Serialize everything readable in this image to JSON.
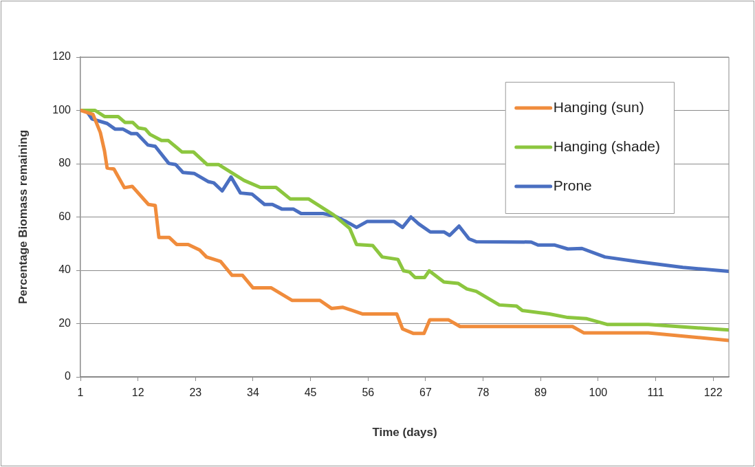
{
  "chart_data": {
    "type": "line",
    "xlabel": "Time (days)",
    "ylabel": "Percentage Biomass remaining",
    "xlim": [
      1,
      125
    ],
    "xticks": [
      1,
      12,
      23,
      34,
      45,
      56,
      67,
      78,
      89,
      100,
      111,
      122
    ],
    "ylim": [
      0,
      120
    ],
    "yticks": [
      0,
      20,
      40,
      60,
      80,
      100,
      120
    ],
    "grid": "y",
    "legend": "top right",
    "marker": "none",
    "line_style": "solid",
    "series": [
      {
        "name": "Hanging (sun)",
        "color": "#f08c3c",
        "x": [
          1,
          3.4,
          4.8,
          5.6,
          6.1,
          7.4,
          9.4,
          10.9,
          14,
          15.3,
          16,
          18,
          19.4,
          21.6,
          23.8,
          25.1,
          27.8,
          30,
          32,
          34,
          37.5,
          41.5,
          46.8,
          49,
          51.2,
          55,
          61.5,
          62.6,
          64.7,
          66.7,
          67.8,
          71.4,
          73.6,
          95.1,
          97.3,
          109.6,
          125
        ],
        "values": [
          100,
          98.5,
          91.7,
          84.8,
          78.4,
          78,
          71,
          71.5,
          64.7,
          64.3,
          52.3,
          52.3,
          49.7,
          49.7,
          47.6,
          45,
          43.3,
          38.1,
          38.1,
          33.4,
          33.4,
          28.7,
          28.7,
          25.7,
          26.1,
          23.6,
          23.6,
          18,
          16.3,
          16.3,
          21.4,
          21.4,
          18.9,
          18.9,
          16.5,
          16.5,
          13.7
        ]
      },
      {
        "name": "Hanging (shade)",
        "color": "#8cc63f",
        "x": [
          1,
          3.8,
          5.6,
          8.2,
          9.5,
          11,
          12.1,
          13.4,
          14.3,
          16.5,
          17.8,
          20.4,
          22.6,
          25.2,
          27.4,
          32.3,
          35.4,
          38.4,
          41.1,
          44.6,
          49.4,
          52.5,
          53.8,
          56.9,
          58.7,
          61.7,
          62.8,
          63.9,
          65,
          66.8,
          67.7,
          70.5,
          73.2,
          74.9,
          76.7,
          81.1,
          84.4,
          85.5,
          90.7,
          94.2,
          97.7,
          101.7,
          109.6,
          125
        ],
        "values": [
          100,
          100,
          97.7,
          97.7,
          95.5,
          95.5,
          93.4,
          93,
          91,
          88.7,
          88.7,
          84.4,
          84.4,
          79.7,
          79.7,
          73.7,
          71.1,
          71.1,
          66.8,
          66.8,
          60.8,
          55.7,
          49.7,
          49.3,
          45,
          44.1,
          39.8,
          39.4,
          37.3,
          37.3,
          39.8,
          35.6,
          35.1,
          33,
          32.1,
          27,
          26.6,
          24.9,
          23.6,
          22.3,
          21.9,
          19.7,
          19.7,
          17.6
        ]
      },
      {
        "name": "Prone",
        "color": "#4a6fc1",
        "x": [
          1,
          2.1,
          3.2,
          6.1,
          7.6,
          9.1,
          10.7,
          11.8,
          13.9,
          15.3,
          17.9,
          19.2,
          20.6,
          22.8,
          25.4,
          26.5,
          28.1,
          29.8,
          31.6,
          33.8,
          36.2,
          37.7,
          39.5,
          41.7,
          43.2,
          47.4,
          49.6,
          51.8,
          53.8,
          55.8,
          61,
          62.6,
          64.2,
          65.7,
          67.9,
          70.5,
          71.6,
          73.4,
          75.3,
          76.7,
          87.2,
          88.5,
          91.6,
          94.2,
          96.9,
          101.3,
          107.4,
          116.2,
          125
        ],
        "values": [
          100,
          100,
          96.8,
          95.1,
          93,
          93,
          91.3,
          91.3,
          87,
          86.5,
          80.1,
          79.7,
          76.7,
          76.3,
          73.3,
          72.8,
          69.8,
          75,
          69,
          68.6,
          64.7,
          64.7,
          63,
          63,
          61.3,
          61.3,
          60.4,
          58.3,
          56.1,
          58.3,
          58.3,
          56.1,
          60,
          57.4,
          54.4,
          54.4,
          53.1,
          56.6,
          51.8,
          50.7,
          50.6,
          49.5,
          49.5,
          48,
          48.2,
          45,
          43.3,
          41.1,
          39.6
        ]
      }
    ]
  }
}
